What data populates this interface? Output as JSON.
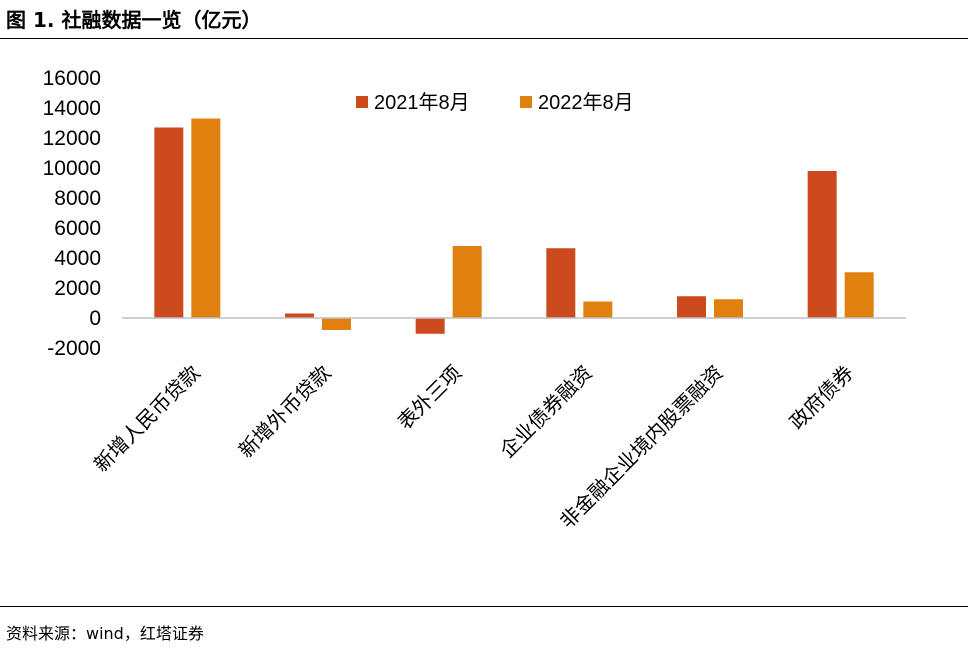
{
  "title": "图 1. 社融数据一览（亿元）",
  "source": "资料来源：wind，红塔证券",
  "colors": {
    "series_2021": "#CC4A1E",
    "series_2022": "#E0800F",
    "axis": "#BFBFBF"
  },
  "chart_data": {
    "type": "bar",
    "categories": [
      "新增人民币贷款",
      "新增外币贷款",
      "表外三项",
      "企业债券融资",
      "非金融企业境内股票融资",
      "政府债券"
    ],
    "series": [
      {
        "name": "2021年8月",
        "values": [
          12700,
          300,
          -1050,
          4650,
          1450,
          9800
        ]
      },
      {
        "name": "2022年8月",
        "values": [
          13300,
          -800,
          4800,
          1100,
          1250,
          3050
        ]
      }
    ],
    "ylim": [
      -2000,
      16000
    ],
    "yticks": [
      "-2000",
      "0",
      "2000",
      "4000",
      "6000",
      "8000",
      "10000",
      "12000",
      "14000",
      "16000"
    ],
    "legend_position": "top-center",
    "grid": false
  }
}
